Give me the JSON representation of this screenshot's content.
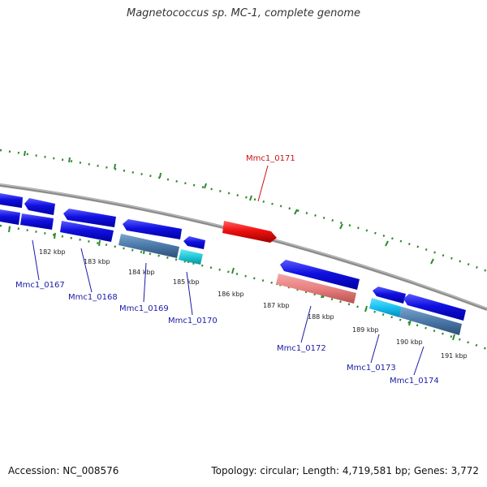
{
  "title": "Magnetococcus sp. MC-1, complete genome",
  "footer": {
    "accession": "Accession: NC_008576",
    "summary": "Topology: circular; Length: 4,719,581 bp; Genes: 3,772"
  },
  "colors": {
    "backbone": "#8c8c8c",
    "dotted_track": "#2e8b2e",
    "gene_blue": "#1010e0",
    "gene_steel": "#4a78a8",
    "gene_cyan": "#20c8d8",
    "gene_red": "#ee1111",
    "gene_pink": "#e88080",
    "label_blue": "#1a1aa8",
    "label_red": "#cc1111"
  },
  "ticks": [
    "182 kbp",
    "183 kbp",
    "184 kbp",
    "185 kbp",
    "186 kbp",
    "187 kbp",
    "188 kbp",
    "189 kbp",
    "190 kbp",
    "191 kbp"
  ],
  "gene_labels": [
    {
      "text": "Mmc1_0167",
      "color": "blue"
    },
    {
      "text": "Mmc1_0168",
      "color": "blue"
    },
    {
      "text": "Mmc1_0169",
      "color": "blue"
    },
    {
      "text": "Mmc1_0170",
      "color": "blue"
    },
    {
      "text": "Mmc1_0171",
      "color": "red"
    },
    {
      "text": "Mmc1_0172",
      "color": "blue"
    },
    {
      "text": "Mmc1_0173",
      "color": "blue"
    },
    {
      "text": "Mmc1_0174",
      "color": "blue"
    }
  ]
}
